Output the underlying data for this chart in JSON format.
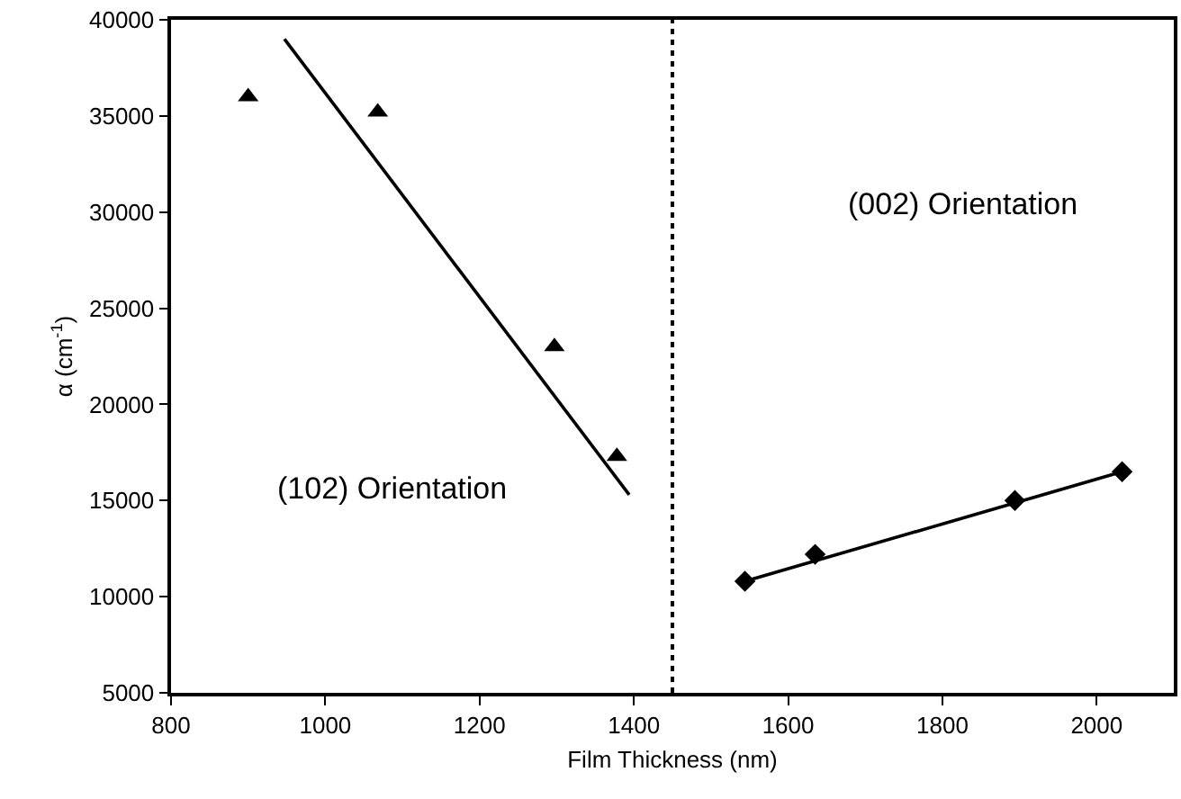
{
  "chart_data": {
    "type": "scatter",
    "xlabel": "Film Thickness (nm)",
    "ylabel": "α (cm$^{-1}$)",
    "xlim": [
      800,
      2100
    ],
    "xticks": [
      800,
      1000,
      1200,
      1400,
      1600,
      1800,
      2000
    ],
    "ylim": [
      5000,
      40000
    ],
    "yticks": [
      5000,
      10000,
      15000,
      20000,
      25000,
      30000,
      35000,
      40000
    ],
    "grid": false,
    "series": [
      {
        "color": "#000000",
        "marker": "triangle",
        "x": [
          900,
          1068,
          1297,
          1378
        ],
        "values": [
          36000,
          35200,
          23000,
          17300
        ]
      },
      {
        "type": "line",
        "color": "#000000",
        "marker": "none",
        "line_style": "solid",
        "x": [
          947,
          1394
        ],
        "values": [
          39000,
          15300
        ]
      },
      {
        "color": "#000000",
        "marker": "diamond",
        "x": [
          1544,
          1635,
          1894,
          2033
        ],
        "values": [
          10800,
          12200,
          15000,
          16500
        ]
      },
      {
        "type": "line",
        "color": "#000000",
        "marker": "none",
        "line_style": "solid",
        "x": [
          1544,
          2033
        ],
        "values": [
          10800,
          16500
        ]
      }
    ],
    "ref_lines": [
      {
        "axis": "x",
        "value": 1450,
        "color": "#000000",
        "line_style": "dotted"
      }
    ],
    "annotations": [
      "(102) Orientation",
      "(002) Orientation"
    ]
  }
}
